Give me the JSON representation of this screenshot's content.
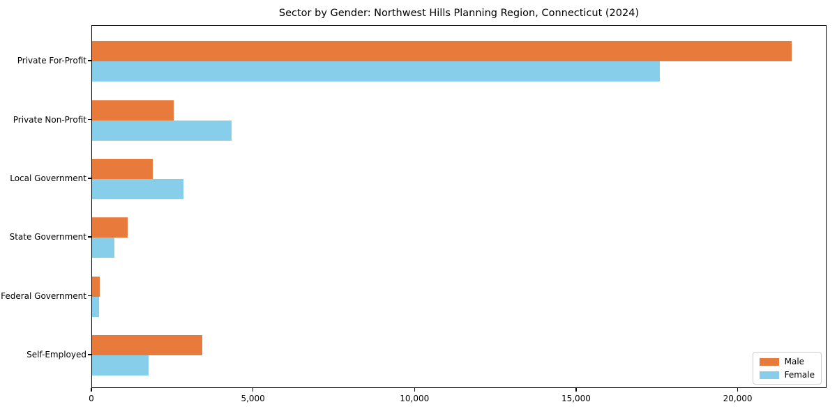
{
  "title": "Sector by Gender: Northwest Hills Planning Region, Connecticut (2024)",
  "colors": {
    "male": "#E87A3C",
    "female": "#87CEEB",
    "axis": "#000000",
    "legend_border": "#CCCCCC",
    "background": "#FFFFFF"
  },
  "chart_data": {
    "type": "bar",
    "orientation": "horizontal",
    "title": "Sector by Gender: Northwest Hills Planning Region, Connecticut (2024)",
    "categories": [
      "Private For-Profit",
      "Private Non-Profit",
      "Local Government",
      "State Government",
      "Federal Government",
      "Self-Employed"
    ],
    "series": [
      {
        "name": "Male",
        "color": "#E87A3C",
        "values": [
          21700,
          2520,
          1880,
          1110,
          240,
          3410
        ]
      },
      {
        "name": "Female",
        "color": "#87CEEB",
        "values": [
          17610,
          4320,
          2840,
          700,
          225,
          1750
        ]
      }
    ],
    "xlabel": "",
    "ylabel": "",
    "xlim": [
      0,
      22750
    ],
    "xticks": [
      0,
      5000,
      10000,
      15000,
      20000
    ],
    "xtick_labels": [
      "0",
      "5,000",
      "10,000",
      "15,000",
      "20,000"
    ],
    "grid": false,
    "legend_position": "lower right"
  }
}
